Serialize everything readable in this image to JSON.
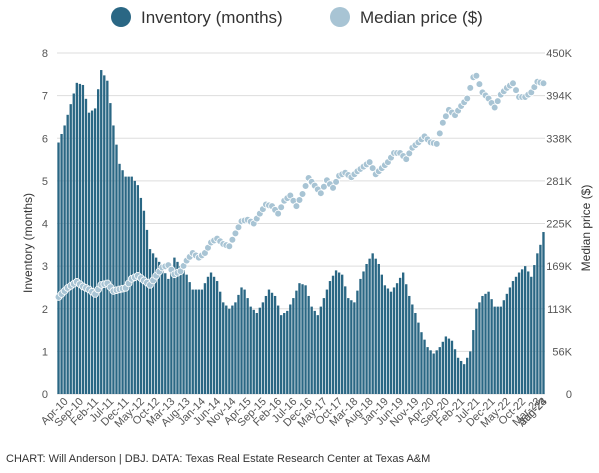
{
  "chart_data": {
    "type": "bar+line",
    "title": "",
    "legend": {
      "position": "top",
      "entries": [
        {
          "name": "Inventory (months)",
          "color": "#2a6784"
        },
        {
          "name": "Median price ($)",
          "color": "#a8c4d4"
        }
      ]
    },
    "y_left": {
      "label": "Inventory (months)",
      "ylim": [
        0,
        8
      ],
      "ticks": [
        "0",
        "1",
        "2",
        "3",
        "4",
        "5",
        "6",
        "7",
        "8"
      ]
    },
    "y_right": {
      "label": "Median price ($)",
      "ylim": [
        0,
        450000
      ],
      "ticks": [
        "0",
        "56K",
        "113K",
        "169K",
        "225K",
        "281K",
        "338K",
        "394K",
        "450K"
      ]
    },
    "x_tick_labels": [
      "Apr-10",
      "Sep-10",
      "Feb-11",
      "Jul-11",
      "Dec-11",
      "May-12",
      "Oct-12",
      "Mar-13",
      "Aug-13",
      "Jan-14",
      "Jun-14",
      "Nov-14",
      "Apr-15",
      "Sep-15",
      "Feb-16",
      "Jul-16",
      "Dec-16",
      "May-17",
      "Oct-17",
      "Mar-18",
      "Aug-18",
      "Jan-19",
      "Jun-19",
      "Nov-19",
      "Apr-20",
      "Sep-20",
      "Feb-21",
      "Jul-21",
      "Dec-21",
      "May-22",
      "Oct-22",
      "Mar-23",
      "Aug-23",
      "Jan-24",
      "Jun-24"
    ],
    "grid": "horizontal",
    "series": [
      {
        "name": "Inventory (months)",
        "type": "bar",
        "color": "#2a6784",
        "start_month": "Apr-10",
        "anchors": [
          [
            0,
            5.9
          ],
          [
            2,
            6.3
          ],
          [
            4,
            6.8
          ],
          [
            6,
            7.3
          ],
          [
            8,
            7.25
          ],
          [
            10,
            6.6
          ],
          [
            12,
            6.7
          ],
          [
            14,
            7.6
          ],
          [
            16,
            7.35
          ],
          [
            18,
            6.3
          ],
          [
            20,
            5.4
          ],
          [
            22,
            5.1
          ],
          [
            24,
            5.1
          ],
          [
            26,
            4.9
          ],
          [
            28,
            4.3
          ],
          [
            30,
            3.4
          ],
          [
            33,
            3.1
          ],
          [
            36,
            2.7
          ],
          [
            38,
            3.2
          ],
          [
            40,
            3.0
          ],
          [
            42,
            2.8
          ],
          [
            44,
            2.45
          ],
          [
            47,
            2.45
          ],
          [
            49,
            2.75
          ],
          [
            50,
            2.85
          ],
          [
            52,
            2.65
          ],
          [
            54,
            2.15
          ],
          [
            56,
            2.0
          ],
          [
            58,
            2.15
          ],
          [
            60,
            2.5
          ],
          [
            61,
            2.45
          ],
          [
            63,
            2.05
          ],
          [
            65,
            1.9
          ],
          [
            67,
            2.15
          ],
          [
            69,
            2.45
          ],
          [
            71,
            2.3
          ],
          [
            73,
            1.85
          ],
          [
            75,
            1.95
          ],
          [
            77,
            2.25
          ],
          [
            79,
            2.6
          ],
          [
            81,
            2.55
          ],
          [
            83,
            2.05
          ],
          [
            85,
            1.85
          ],
          [
            87,
            2.25
          ],
          [
            89,
            2.65
          ],
          [
            91,
            2.9
          ],
          [
            93,
            2.8
          ],
          [
            95,
            2.25
          ],
          [
            97,
            2.15
          ],
          [
            99,
            2.7
          ],
          [
            101,
            3.05
          ],
          [
            103,
            3.3
          ],
          [
            105,
            3.05
          ],
          [
            107,
            2.55
          ],
          [
            109,
            2.4
          ],
          [
            111,
            2.6
          ],
          [
            113,
            2.85
          ],
          [
            115,
            2.3
          ],
          [
            117,
            1.9
          ],
          [
            119,
            1.45
          ],
          [
            121,
            1.1
          ],
          [
            123,
            0.95
          ],
          [
            125,
            1.1
          ],
          [
            127,
            1.35
          ],
          [
            129,
            1.25
          ],
          [
            131,
            0.85
          ],
          [
            133,
            0.7
          ],
          [
            135,
            1.0
          ],
          [
            137,
            2.0
          ],
          [
            139,
            2.3
          ],
          [
            141,
            2.4
          ],
          [
            143,
            2.05
          ],
          [
            145,
            2.05
          ],
          [
            147,
            2.35
          ],
          [
            149,
            2.65
          ],
          [
            151,
            2.85
          ],
          [
            153,
            3.0
          ],
          [
            155,
            2.75
          ],
          [
            157,
            3.3
          ],
          [
            158,
            3.5
          ],
          [
            159,
            3.8
          ]
        ]
      },
      {
        "name": "Median price ($)",
        "type": "line-dots",
        "color": "#a8c4d4",
        "start_month": "Apr-10",
        "anchors": [
          [
            0,
            128000
          ],
          [
            3,
            140000
          ],
          [
            6,
            148000
          ],
          [
            8,
            142000
          ],
          [
            10,
            138000
          ],
          [
            12,
            132000
          ],
          [
            14,
            144000
          ],
          [
            16,
            146000
          ],
          [
            18,
            136000
          ],
          [
            20,
            138000
          ],
          [
            22,
            140000
          ],
          [
            24,
            152000
          ],
          [
            26,
            156000
          ],
          [
            28,
            150000
          ],
          [
            30,
            144000
          ],
          [
            32,
            156000
          ],
          [
            34,
            167000
          ],
          [
            36,
            170000
          ],
          [
            38,
            158000
          ],
          [
            40,
            162000
          ],
          [
            42,
            176000
          ],
          [
            44,
            186000
          ],
          [
            46,
            180000
          ],
          [
            48,
            186000
          ],
          [
            50,
            200000
          ],
          [
            52,
            205000
          ],
          [
            54,
            198000
          ],
          [
            56,
            195000
          ],
          [
            58,
            212000
          ],
          [
            60,
            228000
          ],
          [
            62,
            230000
          ],
          [
            64,
            225000
          ],
          [
            66,
            238000
          ],
          [
            68,
            250000
          ],
          [
            70,
            248000
          ],
          [
            72,
            238000
          ],
          [
            74,
            255000
          ],
          [
            76,
            262000
          ],
          [
            78,
            248000
          ],
          [
            80,
            264000
          ],
          [
            82,
            285000
          ],
          [
            84,
            275000
          ],
          [
            86,
            265000
          ],
          [
            88,
            282000
          ],
          [
            90,
            272000
          ],
          [
            92,
            288000
          ],
          [
            94,
            292000
          ],
          [
            96,
            286000
          ],
          [
            98,
            294000
          ],
          [
            100,
            300000
          ],
          [
            102,
            306000
          ],
          [
            104,
            290000
          ],
          [
            106,
            298000
          ],
          [
            108,
            306000
          ],
          [
            110,
            318000
          ],
          [
            112,
            318000
          ],
          [
            114,
            310000
          ],
          [
            116,
            325000
          ],
          [
            118,
            332000
          ],
          [
            120,
            340000
          ],
          [
            122,
            332000
          ],
          [
            124,
            330000
          ],
          [
            126,
            358000
          ],
          [
            128,
            375000
          ],
          [
            130,
            368000
          ],
          [
            132,
            380000
          ],
          [
            134,
            390000
          ],
          [
            136,
            418000
          ],
          [
            137,
            420000
          ],
          [
            139,
            398000
          ],
          [
            141,
            390000
          ],
          [
            143,
            378000
          ],
          [
            145,
            395000
          ],
          [
            147,
            404000
          ],
          [
            149,
            410000
          ],
          [
            151,
            392000
          ],
          [
            153,
            392000
          ],
          [
            155,
            398000
          ],
          [
            157,
            412000
          ],
          [
            159,
            410000
          ]
        ]
      }
    ]
  },
  "caption": "CHART: Will Anderson | DBJ. DATA: Texas Real Estate Research Center at Texas A&M"
}
